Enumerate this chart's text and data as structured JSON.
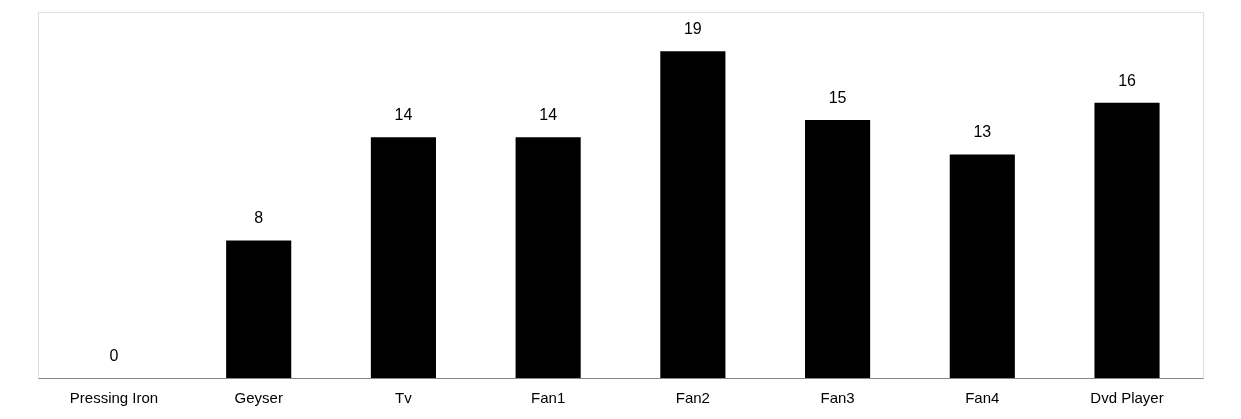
{
  "chart_data": {
    "type": "bar",
    "categories": [
      "Pressing Iron",
      "Geyser",
      "Tv",
      "Fan1",
      "Fan2",
      "Fan3",
      "Fan4",
      "Dvd Player"
    ],
    "values": [
      0,
      8,
      14,
      14,
      19,
      15,
      13,
      16
    ],
    "color": "#000000",
    "data_labels": true
  }
}
